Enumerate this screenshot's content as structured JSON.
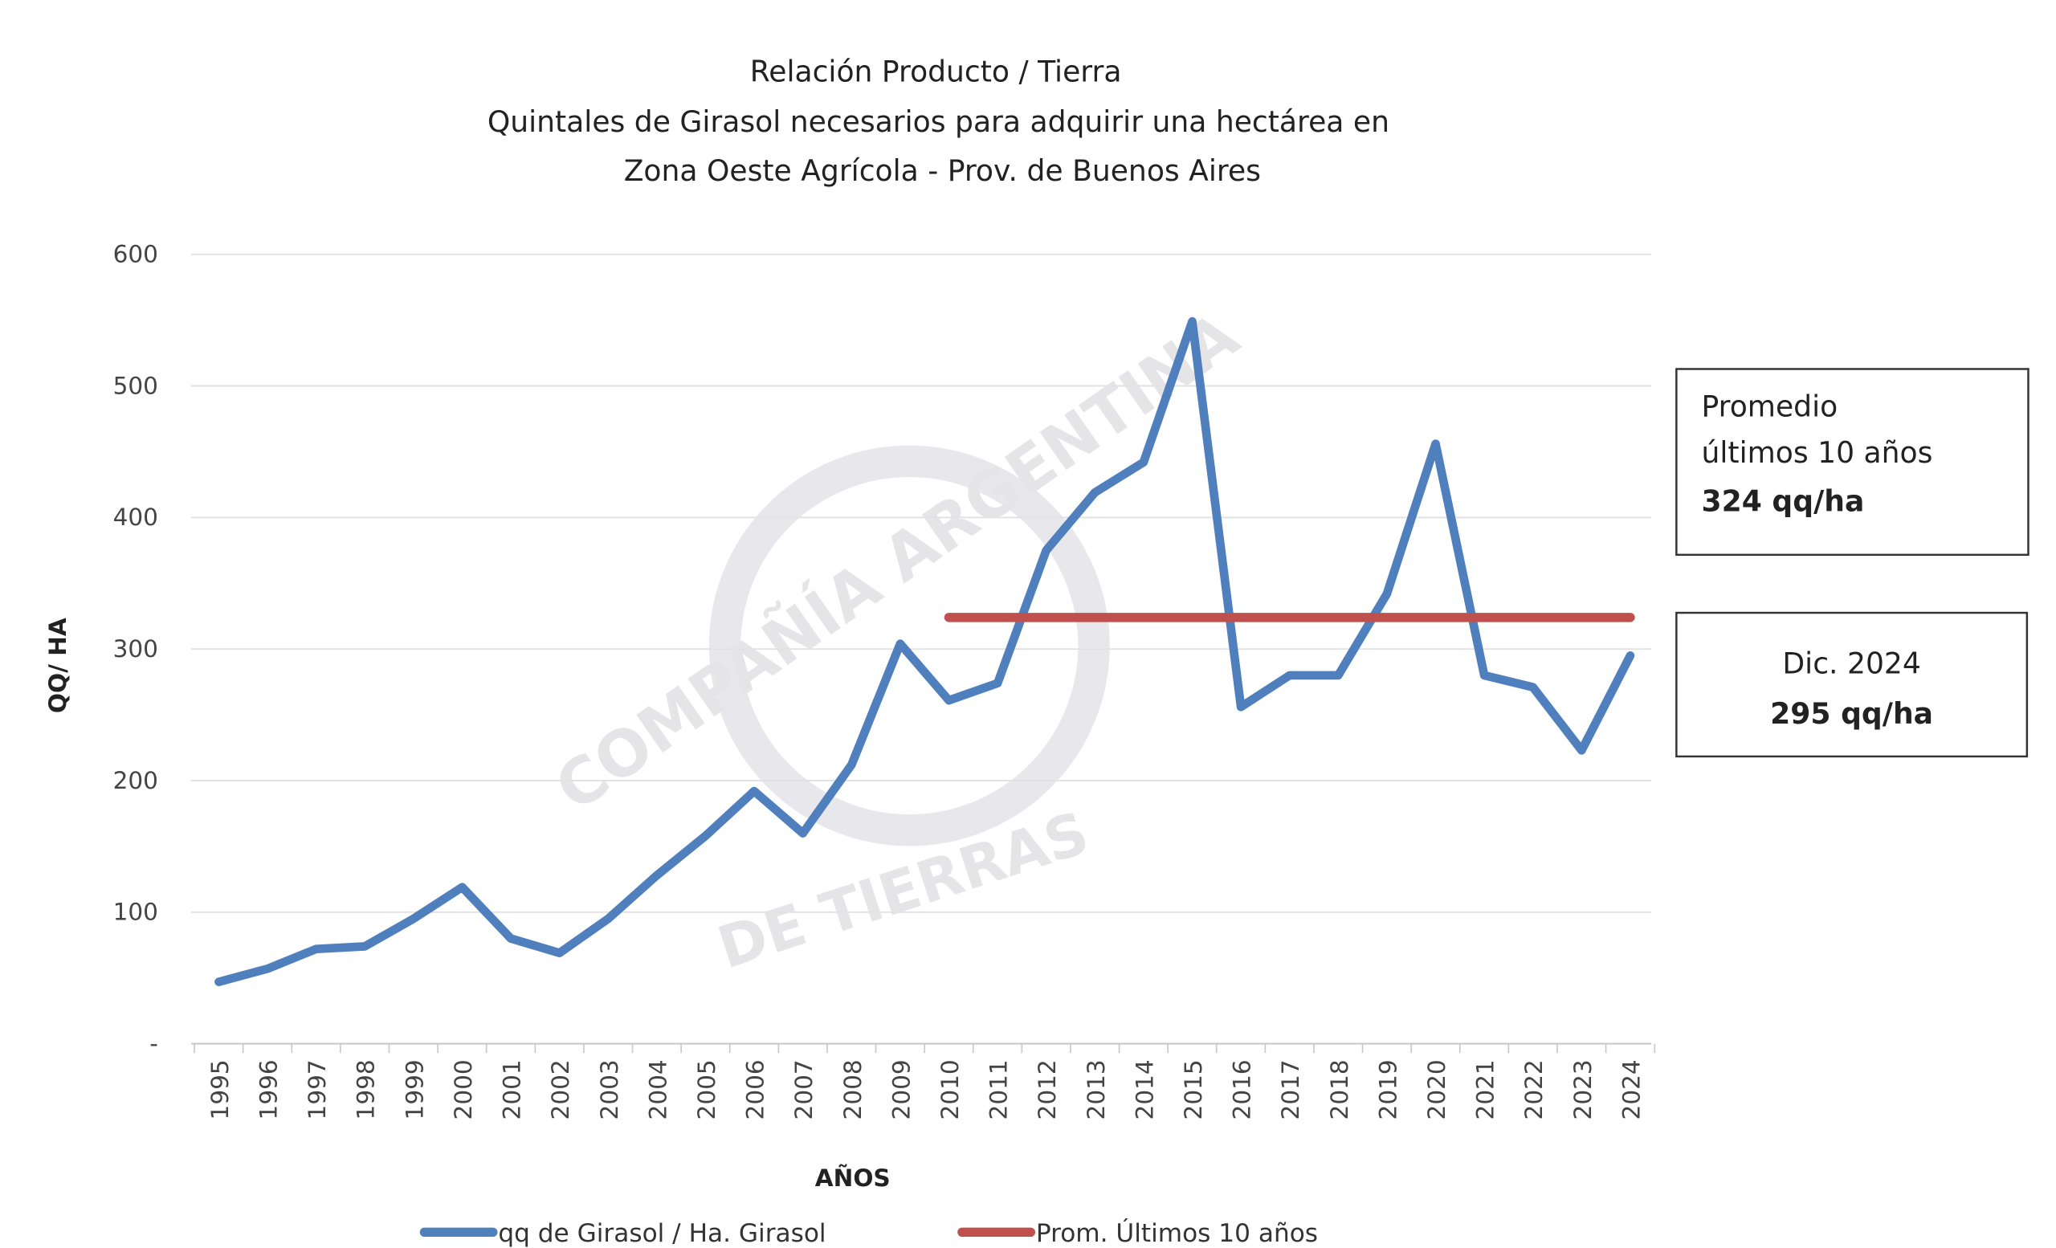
{
  "chart_data": {
    "type": "line",
    "title": [
      "Relación Producto / Tierra",
      "Quintales de Girasol necesarios para adquirir una hectárea en",
      "Zona Oeste Agrícola - Prov. de Buenos Aires"
    ],
    "xlabel": "AÑOS",
    "ylabel": "QQ/ HA",
    "ylim": [
      0,
      600
    ],
    "yticks": [
      0,
      100,
      200,
      300,
      400,
      500,
      600
    ],
    "ytick_labels": [
      "-",
      "100",
      "200",
      "300",
      "400",
      "500",
      "600"
    ],
    "grid": true,
    "x": [
      "1995",
      "1996",
      "1997",
      "1998",
      "1999",
      "2000",
      "2001",
      "2002",
      "2003",
      "2004",
      "2005",
      "2006",
      "2007",
      "2008",
      "2009",
      "2010",
      "2011",
      "2012",
      "2013",
      "2014",
      "2015",
      "2016",
      "2017",
      "2018",
      "2019",
      "2020",
      "2021",
      "2022",
      "2023",
      "2024"
    ],
    "series": [
      {
        "name": "qq de  Girasol / Ha. Girasol",
        "color": "#4f7fbd",
        "values": [
          47,
          57,
          72,
          74,
          95,
          119,
          80,
          69,
          95,
          128,
          158,
          192,
          160,
          212,
          304,
          261,
          274,
          375,
          419,
          442,
          549,
          256,
          280,
          280,
          342,
          456,
          280,
          271,
          223,
          295
        ]
      },
      {
        "name": "Prom. Últimos 10 años",
        "color": "#c0504d",
        "x_range": [
          "2010",
          "2024"
        ],
        "value": 324
      }
    ],
    "legend_position": "bottom",
    "annotations": {
      "average_box": {
        "line1": "Promedio",
        "line2": "últimos 10 años",
        "value": "324 qq/ha"
      },
      "current_box": {
        "line1": "Dic. 2024",
        "value": "295 qq/ha"
      }
    },
    "watermark": [
      "COMPAÑÍA ARGENTINA",
      "DE TIERRAS"
    ]
  }
}
